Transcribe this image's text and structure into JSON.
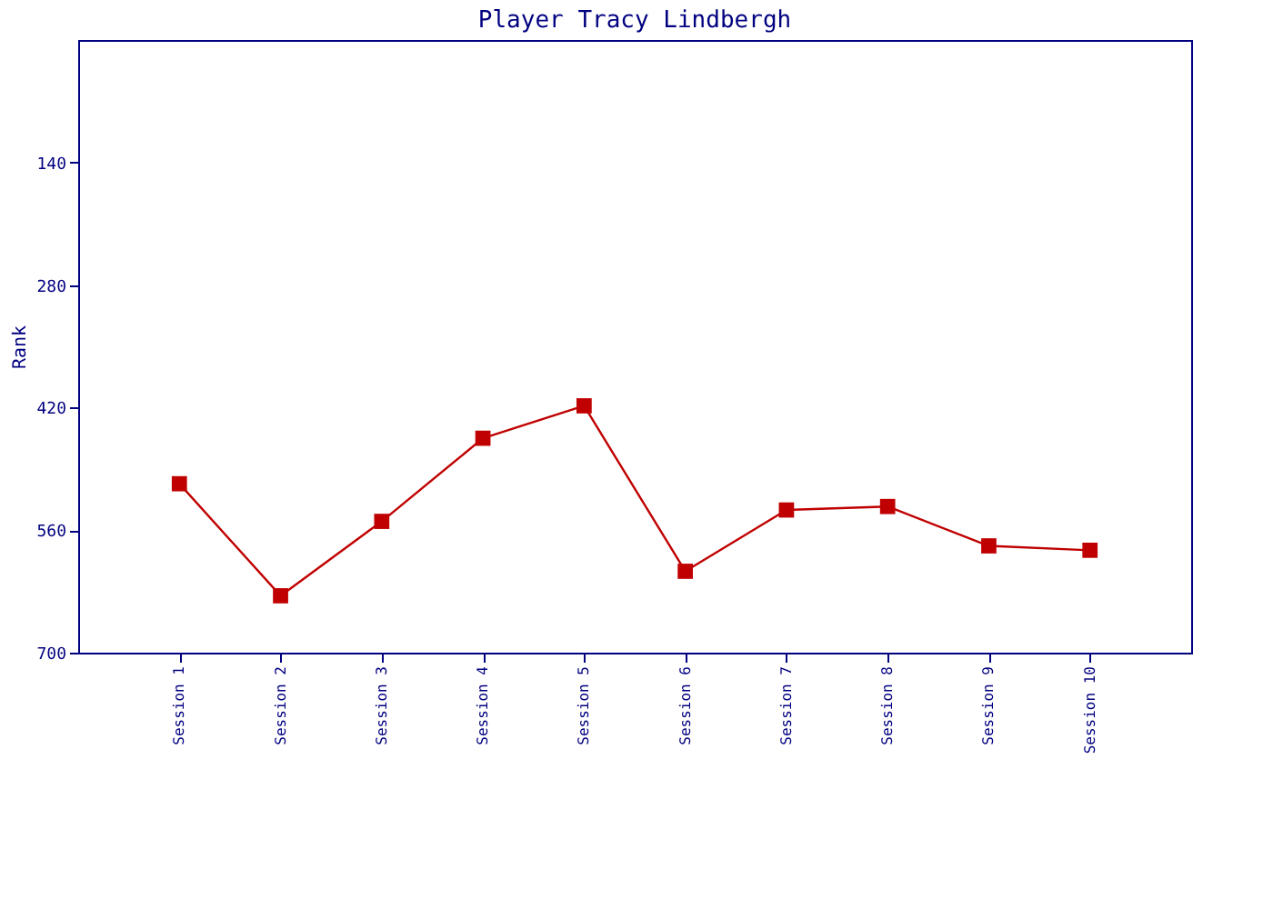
{
  "chart_data": {
    "type": "line",
    "title": "Player Tracy Lindbergh",
    "ylabel": "Rank",
    "categories": [
      "Session 1",
      "Session 2",
      "Session 3",
      "Session 4",
      "Session 5",
      "Session 6",
      "Session 7",
      "Session 8",
      "Session 9",
      "Session 10"
    ],
    "series": [
      {
        "color": "#c00000",
        "values": [
          507,
          635,
          550,
          455,
          418,
          607,
          537,
          533,
          578,
          583
        ]
      }
    ],
    "ylim": [
      700,
      0
    ],
    "yticks": [
      140,
      280,
      420,
      560,
      700
    ],
    "grid": false,
    "marker": "square",
    "line_style": "solid"
  }
}
